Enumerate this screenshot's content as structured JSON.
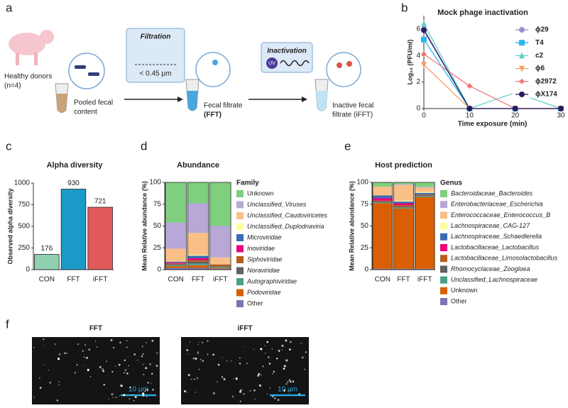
{
  "panel_labels": [
    "a",
    "b",
    "c",
    "d",
    "e",
    "f"
  ],
  "diagram": {
    "donors": "Healthy donors",
    "donors_n": "(n=4)",
    "pooled_1": "Pooled fecal",
    "pooled_2": "content",
    "filtration": "Filtration",
    "pore": "< 0.45 µm",
    "fft_1": "Fecal filtrate",
    "fft_2": "(FFT)",
    "inactivation": "Inactivation",
    "uv": "UV",
    "ifft_1": "Inactive fecal",
    "ifft_2": "filtrate (iFFT)"
  },
  "micrographs": {
    "labels": [
      "FFT",
      "iFFT"
    ],
    "scale_bar": "10 µm"
  },
  "chart_data": [
    {
      "type": "line",
      "title": "Mock phage inactivation",
      "x_label": "Time exposure (min)",
      "y_label": "Log₁₀ (PFU/ml)",
      "x": [
        0,
        10,
        20,
        30
      ],
      "xlim": [
        0,
        30
      ],
      "xticks": [
        0,
        10,
        20,
        30
      ],
      "ylim": [
        0,
        7
      ],
      "yticks": [
        0,
        2,
        4,
        6
      ],
      "legend": "right",
      "series": [
        {
          "name": "ϕ29",
          "color": "#9b8fd6",
          "marker": "circle",
          "values": [
            6.0,
            0,
            0,
            0
          ]
        },
        {
          "name": "T4",
          "color": "#29b6f6",
          "marker": "square",
          "values": [
            5.2,
            0,
            0,
            0
          ]
        },
        {
          "name": "c2",
          "color": "#5fd3c6",
          "marker": "triangle",
          "values": [
            6.4,
            0,
            1.2,
            0
          ]
        },
        {
          "name": "ϕ6",
          "color": "#f6a16a",
          "marker": "triangle-down",
          "values": [
            3.3,
            0,
            0,
            0
          ]
        },
        {
          "name": "ϕ2972",
          "color": "#f07a7a",
          "marker": "diamond",
          "values": [
            4.1,
            1.7,
            0,
            0
          ]
        },
        {
          "name": "ϕX174",
          "color": "#2a1a5e",
          "marker": "circle",
          "values": [
            5.9,
            0,
            0,
            0
          ]
        }
      ]
    },
    {
      "type": "bar",
      "title": "Alpha diversity",
      "y_label": "Observed alpha diversity",
      "categories": [
        "CON",
        "FFT",
        "iFFT"
      ],
      "values": [
        176,
        930,
        721
      ],
      "colors": [
        "#8fd1b0",
        "#1a9ac9",
        "#e05a5a"
      ],
      "ylim": [
        0,
        1000
      ],
      "yticks": [
        0,
        250,
        500,
        750,
        1000
      ]
    },
    {
      "type": "stacked_bar",
      "title": "Abundance",
      "y_label": "Mean Relative abundance (%)",
      "legend_title": "Family",
      "categories": [
        "CON",
        "FFT",
        "iFFT"
      ],
      "ylim": [
        0,
        100
      ],
      "yticks": [
        0,
        25,
        50,
        75,
        100
      ],
      "series": [
        {
          "name": "Other",
          "color": "#7a74b5",
          "italic": false,
          "values": [
            2,
            2,
            1
          ]
        },
        {
          "name": "Podoviridae",
          "color": "#d95f02",
          "italic": true,
          "values": [
            2,
            3,
            1
          ]
        },
        {
          "name": "Autographiviridae",
          "color": "#4aa08a",
          "italic": true,
          "values": [
            1,
            2,
            1
          ]
        },
        {
          "name": "Noraviridae",
          "color": "#616161",
          "italic": true,
          "values": [
            1,
            2,
            1
          ]
        },
        {
          "name": "Siphoviridae",
          "color": "#b85c1e",
          "italic": true,
          "values": [
            1,
            2,
            2
          ]
        },
        {
          "name": "Inoviridae",
          "color": "#e6007e",
          "italic": true,
          "values": [
            1,
            2,
            0
          ]
        },
        {
          "name": "Microviridae",
          "color": "#3a6cb5",
          "italic": true,
          "values": [
            1,
            3,
            0
          ]
        },
        {
          "name": "Unclassified_Duplodnaviria",
          "color": "#fdfd9e",
          "italic": true,
          "values": [
            0,
            1,
            0
          ]
        },
        {
          "name": "Unclassified_Caudoviricetes",
          "color": "#f9bf86",
          "italic": true,
          "values": [
            15,
            25,
            8
          ]
        },
        {
          "name": "Unclassified_Viruses",
          "color": "#b8a8d8",
          "italic": true,
          "values": [
            30,
            34,
            36
          ]
        },
        {
          "name": "Unknown",
          "color": "#7ecf7e",
          "italic": false,
          "values": [
            46,
            24,
            50
          ]
        }
      ]
    },
    {
      "type": "stacked_bar",
      "title": "Host prediction",
      "y_label": "Mean Relative abundance (%)",
      "legend_title": "Genus",
      "categories": [
        "CON",
        "FFT",
        "iFFT"
      ],
      "ylim": [
        0,
        100
      ],
      "yticks": [
        0,
        25,
        50,
        75,
        100
      ],
      "series": [
        {
          "name": "Other",
          "color": "#7a74b5",
          "italic": false,
          "values": [
            1,
            1,
            1
          ]
        },
        {
          "name": "Unknown",
          "color": "#d95f02",
          "italic": false,
          "values": [
            75,
            69,
            82
          ]
        },
        {
          "name": "Unclassified_Lachnospiraceae",
          "color": "#4aa08a",
          "italic": true,
          "values": [
            1,
            1,
            1
          ]
        },
        {
          "name": "Rhomocyclaceae_Zoogloea",
          "color": "#616161",
          "italic": true,
          "values": [
            1,
            1,
            1
          ]
        },
        {
          "name": "Lactobacillaceae_Limosolactobacillus",
          "color": "#b85c1e",
          "italic": true,
          "values": [
            1,
            2,
            1
          ]
        },
        {
          "name": "Lactobacillaceae_Lactobacillus",
          "color": "#e6007e",
          "italic": true,
          "values": [
            3,
            2,
            0
          ]
        },
        {
          "name": "Lachnospiraceae_Schaedlerella",
          "color": "#3a6cb5",
          "italic": true,
          "values": [
            3,
            2,
            2
          ]
        },
        {
          "name": "Lachnospiraceae_CAG-127",
          "color": "#fdfd9e",
          "italic": true,
          "values": [
            0,
            1,
            1
          ]
        },
        {
          "name": "Enterococcaceae_Enterococcus_B",
          "color": "#f9bf86",
          "italic": true,
          "values": [
            10,
            18,
            5
          ]
        },
        {
          "name": "Enterobacteriaceae_Escherichia",
          "color": "#b8a8d8",
          "italic": true,
          "values": [
            0,
            1,
            1
          ]
        },
        {
          "name": "Bacteroidaceae_Bacteroides",
          "color": "#7ecf7e",
          "italic": true,
          "values": [
            5,
            2,
            5
          ]
        }
      ]
    }
  ]
}
